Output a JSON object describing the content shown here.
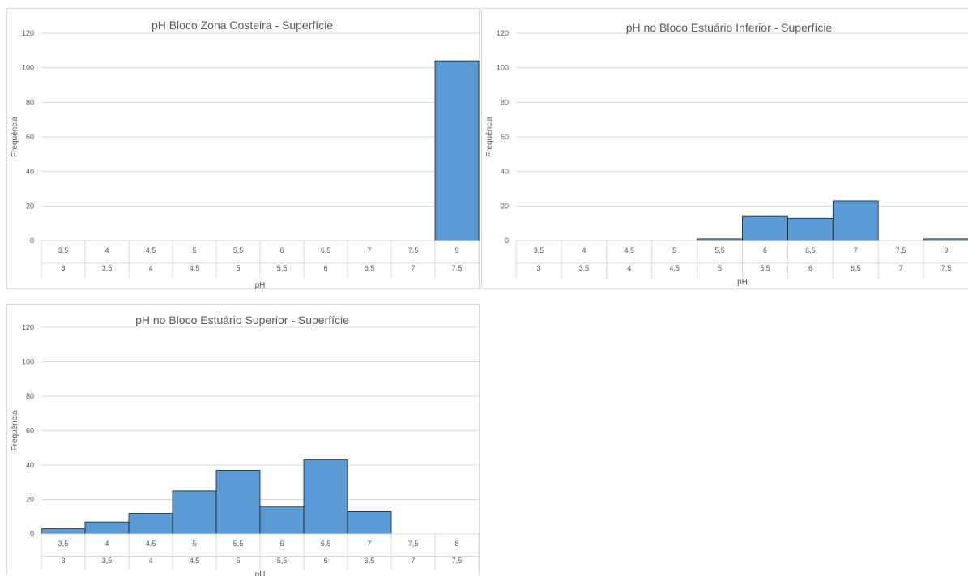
{
  "chart_data": [
    {
      "type": "bar",
      "title": "pH Bloco Zona Costeira - Superfície",
      "xlabel": "pH",
      "ylabel": "Frequência",
      "ylim": [
        0,
        120
      ],
      "yticks": [
        0,
        20,
        40,
        60,
        80,
        100,
        120
      ],
      "grid": true,
      "categories_upper": [
        "3,5",
        "4",
        "4,5",
        "5",
        "5,5",
        "6",
        "6,5",
        "7",
        "7,5",
        "9"
      ],
      "categories_lower": [
        "3",
        "3,5",
        "4",
        "4,5",
        "5",
        "5,5",
        "6",
        "6,5",
        "7",
        "7,5"
      ],
      "values": [
        0,
        0,
        0,
        0,
        0,
        0,
        0,
        0,
        0,
        104
      ]
    },
    {
      "type": "bar",
      "title": "pH no Bloco Estuário Inferior - Superfície",
      "xlabel": "pH",
      "ylabel": "Frequência",
      "ylim": [
        0,
        120
      ],
      "yticks": [
        0,
        20,
        40,
        60,
        80,
        100,
        120
      ],
      "grid": true,
      "categories_upper": [
        "3,5",
        "4",
        "4,5",
        "5",
        "5,5",
        "6",
        "6,5",
        "7",
        "7,5",
        "9"
      ],
      "categories_lower": [
        "3",
        "3,5",
        "4",
        "4,5",
        "5",
        "5,5",
        "6",
        "6,5",
        "7",
        "7,5"
      ],
      "values": [
        0,
        0,
        0,
        0,
        1,
        14,
        13,
        23,
        0,
        1
      ]
    },
    {
      "type": "bar",
      "title": "pH no Bloco Estuário Superior - Superfície",
      "xlabel": "pH",
      "ylabel": "Frequência",
      "ylim": [
        0,
        120
      ],
      "yticks": [
        0,
        20,
        40,
        60,
        80,
        100,
        120
      ],
      "grid": true,
      "categories_upper": [
        "3,5",
        "4",
        "4,5",
        "5",
        "5,5",
        "6",
        "6,5",
        "7",
        "7,5",
        "8"
      ],
      "categories_lower": [
        "3",
        "3,5",
        "4",
        "4,5",
        "5",
        "5,5",
        "6",
        "6,5",
        "7",
        "7,5"
      ],
      "values": [
        3,
        7,
        12,
        25,
        37,
        16,
        43,
        13,
        0,
        0
      ]
    }
  ],
  "colors": {
    "bar_fill": "#5b9bd5",
    "bar_stroke": "#1f1f1f",
    "grid": "#d9d9d9",
    "text": "#595959"
  }
}
